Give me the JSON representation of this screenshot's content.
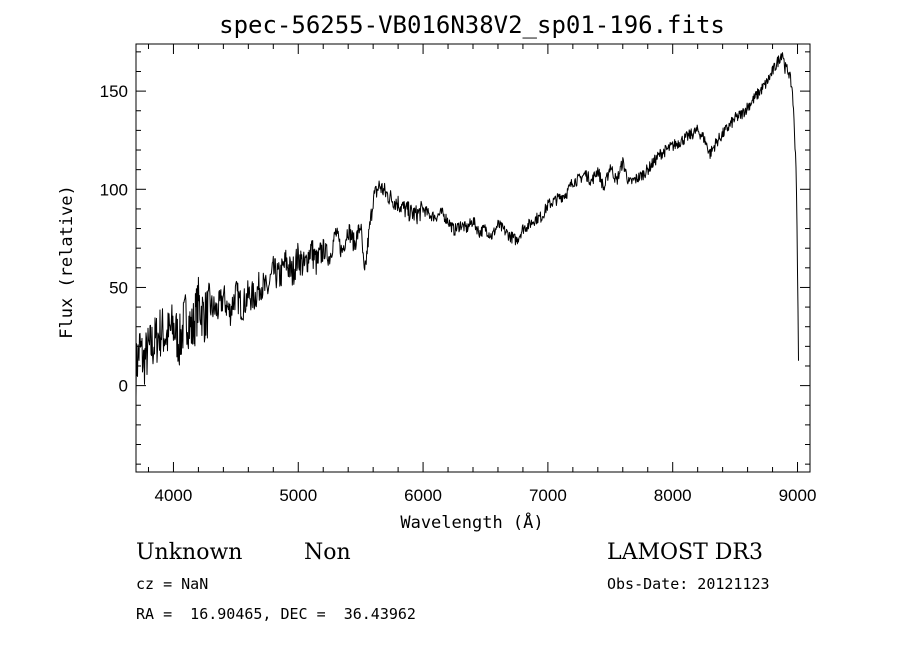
{
  "chart_data": {
    "type": "line",
    "title": "spec-56255-VB016N38V2_sp01-196.fits",
    "xlabel": "Wavelength (Å)",
    "ylabel": "Flux (relative)",
    "xlim": [
      3700,
      9100
    ],
    "ylim": [
      -44,
      174
    ],
    "xticks": [
      4000,
      5000,
      6000,
      7000,
      8000,
      9000
    ],
    "yticks": [
      0,
      50,
      100,
      150
    ],
    "grid": false,
    "series": [
      {
        "x": [
          3700,
          3730,
          3760,
          3800,
          3850,
          3900,
          3950,
          4000,
          4050,
          4100,
          4150,
          4200,
          4250,
          4300,
          4350,
          4400,
          4450,
          4500,
          4550,
          4600,
          4650,
          4700,
          4750,
          4800,
          4850,
          4900,
          4950,
          5000,
          5050,
          5100,
          5150,
          5200,
          5250,
          5300,
          5350,
          5400,
          5450,
          5500,
          5530,
          5560,
          5600,
          5650,
          5700,
          5750,
          5800,
          5850,
          5900,
          5950,
          6000,
          6050,
          6100,
          6150,
          6200,
          6250,
          6300,
          6350,
          6400,
          6450,
          6500,
          6550,
          6600,
          6650,
          6700,
          6750,
          6800,
          6850,
          6900,
          6950,
          7000,
          7050,
          7100,
          7150,
          7200,
          7250,
          7300,
          7350,
          7400,
          7450,
          7500,
          7550,
          7600,
          7650,
          7700,
          7750,
          7800,
          7850,
          7900,
          7950,
          8000,
          8050,
          8100,
          8150,
          8200,
          8250,
          8300,
          8350,
          8400,
          8450,
          8500,
          8550,
          8600,
          8650,
          8700,
          8750,
          8800,
          8850,
          8880,
          8900,
          8930,
          8960,
          8990,
          9010
        ],
        "y": [
          8,
          20,
          12,
          18,
          22,
          28,
          25,
          30,
          22,
          36,
          28,
          42,
          35,
          40,
          38,
          45,
          37,
          47,
          40,
          46,
          45,
          52,
          48,
          58,
          55,
          63,
          57,
          66,
          60,
          70,
          62,
          70,
          65,
          78,
          68,
          80,
          72,
          82,
          55,
          74,
          95,
          102,
          98,
          95,
          93,
          90,
          88,
          87,
          90,
          87,
          86,
          88,
          84,
          79,
          82,
          80,
          84,
          78,
          80,
          76,
          82,
          79,
          76,
          74,
          80,
          82,
          85,
          86,
          92,
          94,
          96,
          98,
          104,
          105,
          108,
          104,
          110,
          100,
          112,
          104,
          114,
          103,
          105,
          107,
          110,
          114,
          118,
          120,
          122,
          124,
          126,
          128,
          130,
          126,
          118,
          124,
          128,
          132,
          136,
          138,
          142,
          146,
          150,
          154,
          160,
          166,
          170,
          162,
          160,
          150,
          110,
          5
        ]
      }
    ]
  },
  "footer": {
    "class_label": "Unknown",
    "subclass_label": "Non",
    "survey": "LAMOST DR3",
    "cz": "cz = NaN",
    "obs_date": "Obs-Date: 20121123",
    "coords": "RA =  16.90465, DEC =  36.43962"
  }
}
